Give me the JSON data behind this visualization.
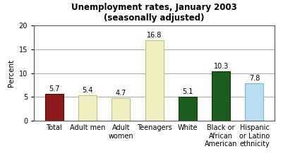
{
  "title": "Unemployment rates, January 2003\n(seasonally adjusted)",
  "categories": [
    "Total",
    "Adult men",
    "Adult\nwomen",
    "Teenagers",
    "White",
    "Black or\nAfrican\nAmerican",
    "Hispanic\nor Latino\nethnicity"
  ],
  "values": [
    5.7,
    5.4,
    4.7,
    16.8,
    5.1,
    10.3,
    7.8
  ],
  "bar_colors": [
    "#8B1A1A",
    "#F0EFC0",
    "#F0EFC0",
    "#F0EFC0",
    "#1E5C1E",
    "#1E5C1E",
    "#B8DFF0"
  ],
  "bar_edgecolors": [
    "#5C0000",
    "#C0BF80",
    "#C0BF80",
    "#C0BF80",
    "#0A3A0A",
    "#0A3A0A",
    "#7EB8D0"
  ],
  "ylabel": "Percent",
  "ylim": [
    0,
    20
  ],
  "yticks": [
    0,
    5,
    10,
    15,
    20
  ],
  "title_fontsize": 8.5,
  "label_fontsize": 7.5,
  "tick_fontsize": 7,
  "value_fontsize": 7,
  "background_color": "#ffffff",
  "grid_color": "#999999"
}
